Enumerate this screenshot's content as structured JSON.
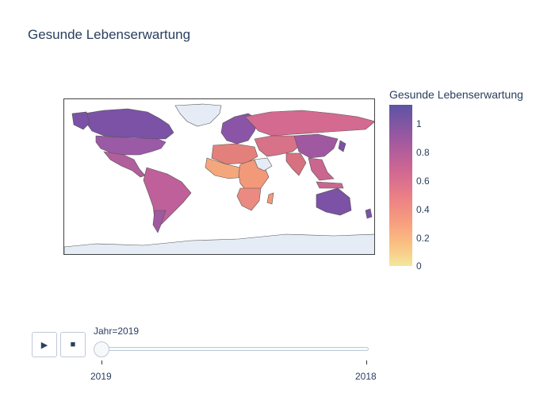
{
  "title": "Gesunde Lebenserwartung",
  "colorbar": {
    "title": "Gesunde Lebenserwartung",
    "ticks": [
      "0",
      "0.2",
      "0.4",
      "0.6",
      "0.8",
      "1"
    ],
    "colors": [
      "#f3e79b",
      "#fac484",
      "#f8a07e",
      "#eb7f86",
      "#ce6693",
      "#a059a0",
      "#5c53a5"
    ]
  },
  "map": {
    "projection": "equirectangular",
    "colors": {
      "land_no_data": "#e5ecf6",
      "border": "#444444"
    }
  },
  "animation": {
    "play_icon": "play-icon",
    "stop_icon": "stop-icon",
    "current_label": "Jahr=2019",
    "steps": [
      "2019",
      "2018"
    ],
    "current_index": 0
  }
}
